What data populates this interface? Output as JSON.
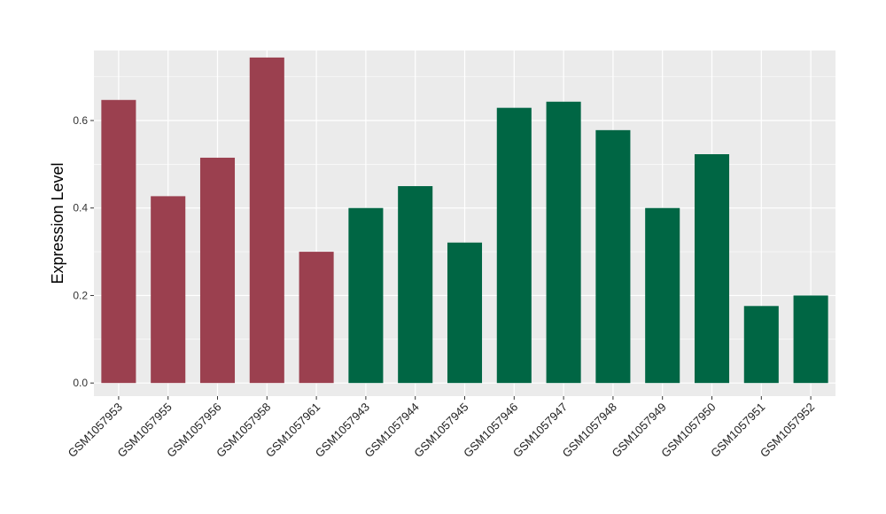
{
  "chart_data": {
    "type": "bar",
    "title": "",
    "xlabel": "",
    "ylabel": "Expression Level",
    "ylim": [
      -0.03,
      0.76
    ],
    "yticks": [
      0.0,
      0.2,
      0.4,
      0.6
    ],
    "ytick_labels": [
      "0.0",
      "0.2",
      "0.4",
      "0.6"
    ],
    "grid": true,
    "legend": "none",
    "categories": [
      "GSM1057953",
      "GSM1057955",
      "GSM1057956",
      "GSM1057958",
      "GSM1057961",
      "GSM1057943",
      "GSM1057944",
      "GSM1057945",
      "GSM1057946",
      "GSM1057947",
      "GSM1057948",
      "GSM1057949",
      "GSM1057950",
      "GSM1057951",
      "GSM1057952"
    ],
    "values": [
      0.647,
      0.427,
      0.515,
      0.744,
      0.3,
      0.4,
      0.45,
      0.321,
      0.629,
      0.643,
      0.578,
      0.4,
      0.523,
      0.176,
      0.2
    ],
    "group_of_bar": [
      0,
      0,
      0,
      0,
      0,
      1,
      1,
      1,
      1,
      1,
      1,
      1,
      1,
      1,
      1
    ],
    "group_colors": [
      "#9b404f",
      "#006644"
    ],
    "panel_color": "#ebebeb",
    "grid_color": "#ffffff"
  }
}
